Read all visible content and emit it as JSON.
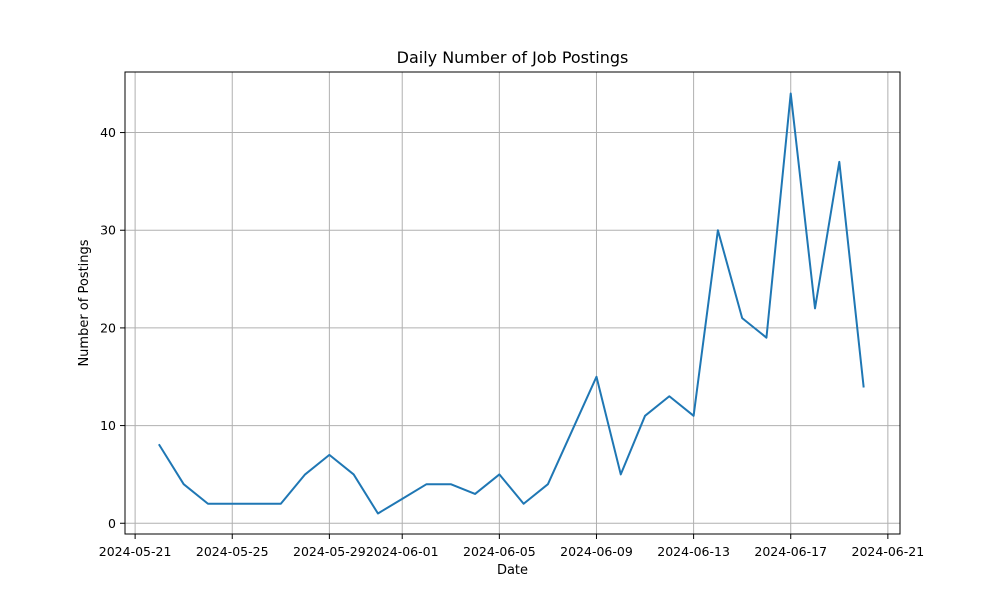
{
  "chart_data": {
    "type": "line",
    "title": "Daily Number of Job Postings",
    "xlabel": "Date",
    "ylabel": "Number of Postings",
    "grid": true,
    "x_tick_labels": [
      "2024-05-21",
      "2024-05-25",
      "2024-05-29",
      "2024-06-01",
      "2024-06-05",
      "2024-06-09",
      "2024-06-13",
      "2024-06-17",
      "2024-06-21"
    ],
    "y_ticks": [
      0,
      10,
      20,
      30,
      40
    ],
    "xlim": [
      "2024-05-20T14:00",
      "2024-06-21T12:00"
    ],
    "ylim": [
      -1.1,
      46.2
    ],
    "series": [
      {
        "color": "#1f77b4",
        "x": [
          "2024-05-22",
          "2024-05-23",
          "2024-05-24",
          "2024-05-25",
          "2024-05-26",
          "2024-05-27",
          "2024-05-28",
          "2024-05-29",
          "2024-05-30",
          "2024-05-31",
          "2024-06-01",
          "2024-06-02",
          "2024-06-03",
          "2024-06-04",
          "2024-06-05",
          "2024-06-06",
          "2024-06-07",
          "2024-06-08",
          "2024-06-09",
          "2024-06-10",
          "2024-06-11",
          "2024-06-12",
          "2024-06-13",
          "2024-06-14",
          "2024-06-15",
          "2024-06-16",
          "2024-06-17",
          "2024-06-18",
          "2024-06-19",
          "2024-06-20"
        ],
        "values": [
          8,
          4,
          2,
          2,
          2,
          2,
          5,
          7,
          5,
          1,
          2.5,
          4,
          4,
          3,
          5,
          2,
          4,
          9.5,
          15,
          5,
          11,
          13,
          11,
          30,
          21,
          19,
          44,
          22,
          37,
          14
        ]
      }
    ]
  }
}
